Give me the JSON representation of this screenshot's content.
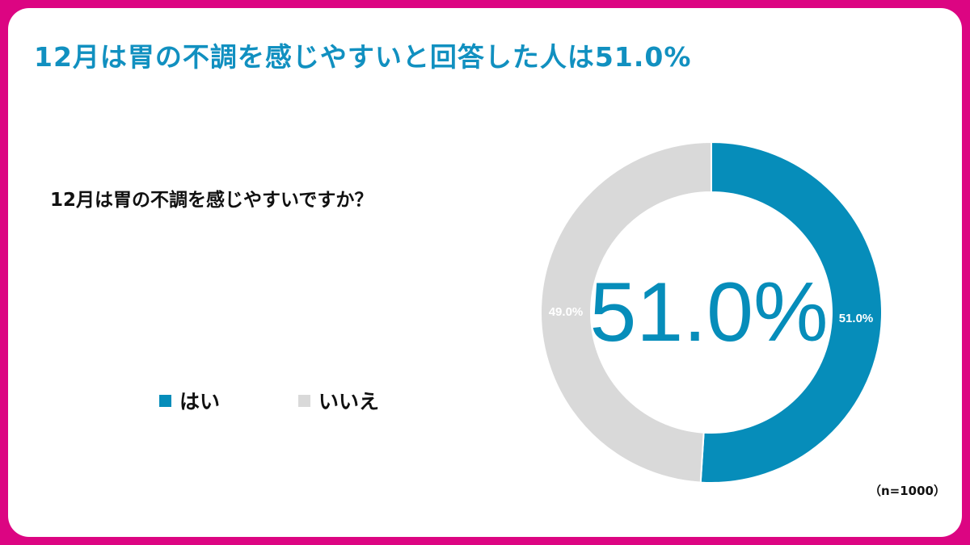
{
  "title": "12月は胃の不調を感じやすいと回答した人は51.0%",
  "chart_data": {
    "type": "pie",
    "donut": true,
    "title": "12月は胃の不調を感じやすいですか？",
    "categories": [
      "はい",
      "いいえ"
    ],
    "values": [
      51.0,
      49.0
    ],
    "data_labels": [
      "51.0%",
      "49.0%"
    ],
    "center_label": "51.0%",
    "colors": [
      "#068dba",
      "#d9d9d9"
    ],
    "legend": "bottom-left",
    "sample_note": "（n=1000）"
  }
}
